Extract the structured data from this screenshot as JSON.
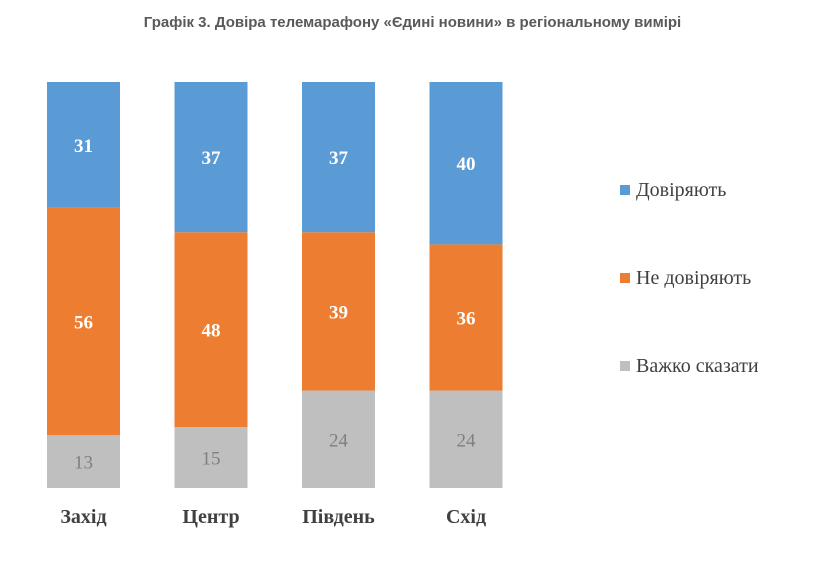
{
  "chart_data": {
    "type": "bar",
    "stacked": true,
    "percent": true,
    "title": "Графік 3. Довіра телемарафону «Єдині новини» в регіональному вимірі",
    "categories": [
      "Захід",
      "Центр",
      "Південь",
      "Схід"
    ],
    "series": [
      {
        "name": "Довіряють",
        "color": "#5B9BD5",
        "label_color": "#ffffff",
        "values": [
          31,
          37,
          37,
          40
        ]
      },
      {
        "name": "Не довіряють",
        "color": "#ED7D31",
        "label_color": "#ffffff",
        "values": [
          56,
          48,
          39,
          36
        ]
      },
      {
        "name": "Важко сказати",
        "color": "#BFBFBF",
        "label_color": "#7F7F7F",
        "values": [
          13,
          15,
          24,
          24
        ]
      }
    ],
    "legend_position": "right",
    "stack_order": "bottom-to-top: Важко сказати, Не довіряють, Довіряють"
  }
}
